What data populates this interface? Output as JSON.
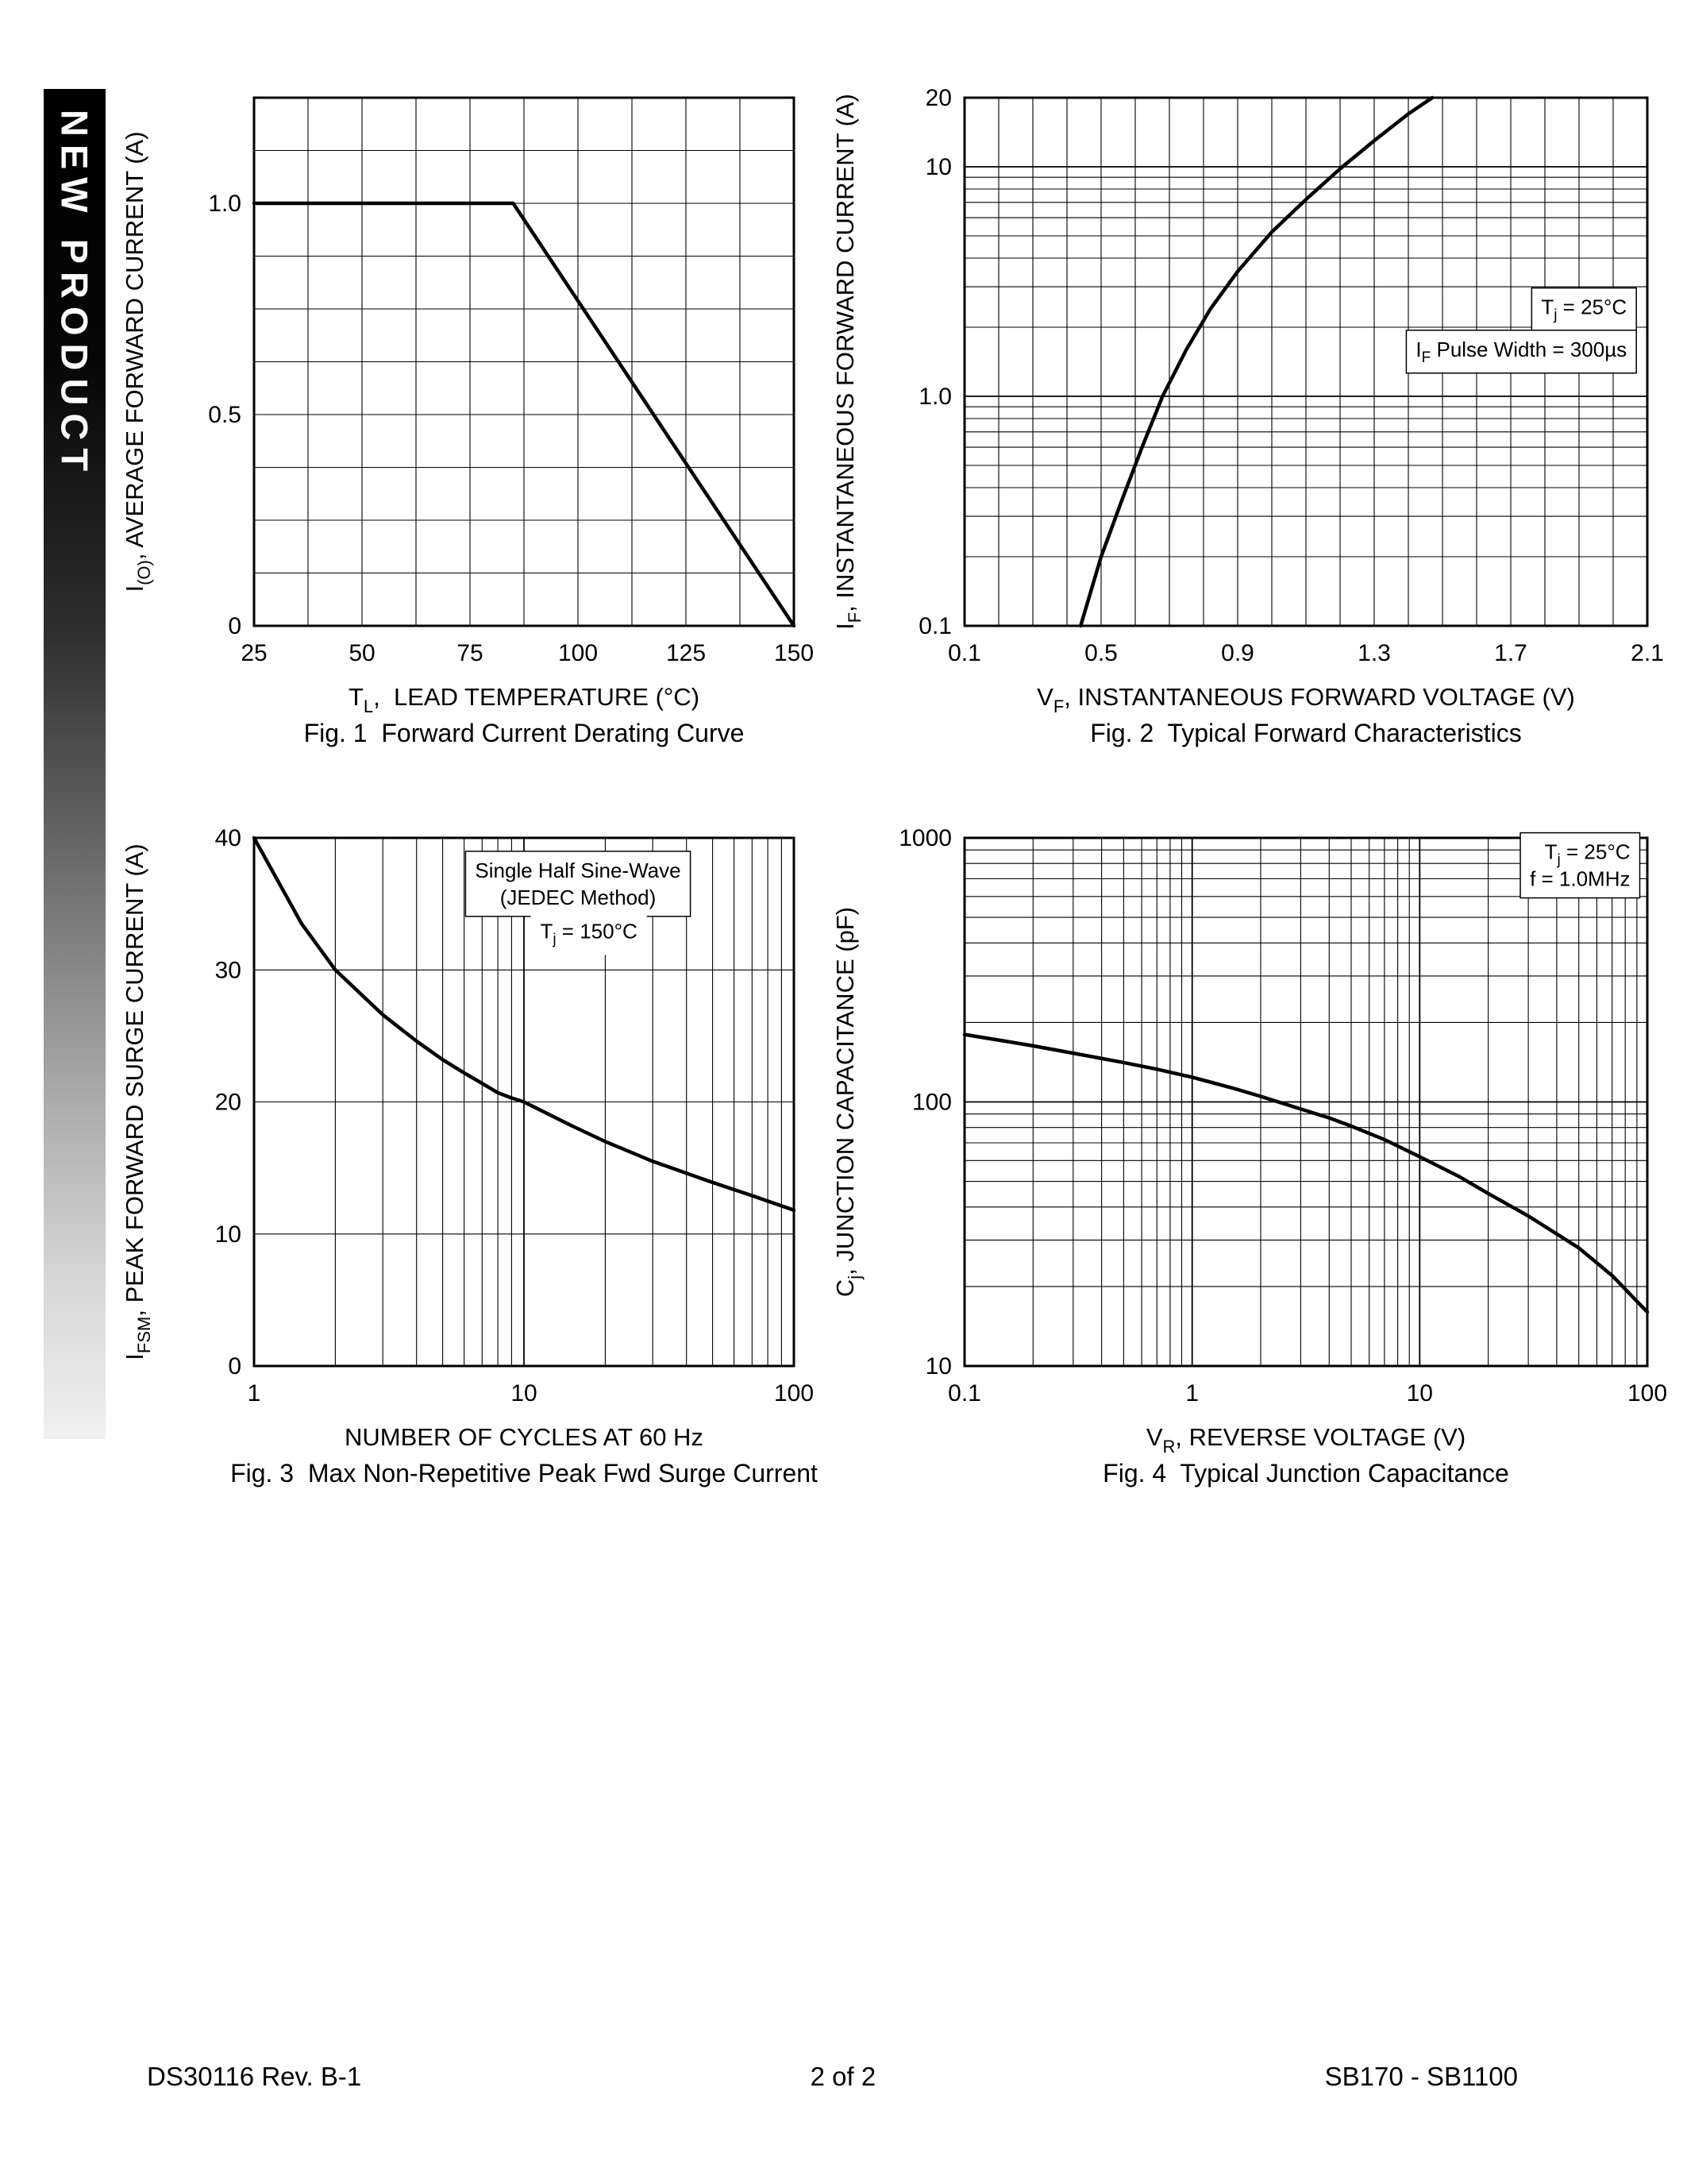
{
  "page": {
    "sidebar_label": "NEW PRODUCT",
    "footer": {
      "left": "DS30116 Rev. B-1",
      "center": "2 of 2",
      "right": "SB170 - SB1100"
    }
  },
  "chart_data": [
    {
      "id": "fig1",
      "type": "line",
      "caption": "Fig. 1  Forward Current Derating Curve",
      "xlabel": [
        {
          "t": "T"
        },
        {
          "t": "L",
          "sub": true
        },
        {
          "t": ",  LEAD TEMPERATURE (°C)"
        }
      ],
      "ylabel": [
        {
          "t": "I"
        },
        {
          "t": "(O)",
          "sub": true
        },
        {
          "t": ", AVERAGE FORWARD CURRENT (A)"
        }
      ],
      "x": {
        "scale": "linear",
        "min": 25,
        "max": 150,
        "grid_step": 12.5,
        "ticks": [
          {
            "v": 25,
            "l": "25"
          },
          {
            "v": 50,
            "l": "50"
          },
          {
            "v": 75,
            "l": "75"
          },
          {
            "v": 100,
            "l": "100"
          },
          {
            "v": 125,
            "l": "125"
          },
          {
            "v": 150,
            "l": "150"
          }
        ]
      },
      "y": {
        "scale": "linear",
        "min": 0,
        "max": 1.25,
        "grid_step": 0.125,
        "ticks": [
          {
            "v": 0,
            "l": "0"
          },
          {
            "v": 0.5,
            "l": "0.5"
          },
          {
            "v": 1.0,
            "l": "1.0"
          }
        ]
      },
      "series": [
        {
          "name": "average-forward-current-derating",
          "points": [
            [
              25,
              1.0
            ],
            [
              85,
              1.0
            ],
            [
              150,
              0
            ]
          ]
        }
      ],
      "annotations": []
    },
    {
      "id": "fig2",
      "type": "line",
      "caption": "Fig. 2  Typical Forward Characteristics",
      "xlabel": [
        {
          "t": "V"
        },
        {
          "t": "F",
          "sub": true
        },
        {
          "t": ", INSTANTANEOUS FORWARD VOLTAGE (V)"
        }
      ],
      "ylabel": [
        {
          "t": "I"
        },
        {
          "t": "F",
          "sub": true
        },
        {
          "t": ", INSTANTANEOUS FORWARD CURRENT (A)"
        }
      ],
      "x": {
        "scale": "linear",
        "min": 0.1,
        "max": 2.1,
        "grid_step": 0.1,
        "ticks": [
          {
            "v": 0.1,
            "l": "0.1"
          },
          {
            "v": 0.5,
            "l": "0.5"
          },
          {
            "v": 0.9,
            "l": "0.9"
          },
          {
            "v": 1.3,
            "l": "1.3"
          },
          {
            "v": 1.7,
            "l": "1.7"
          },
          {
            "v": 2.1,
            "l": "2.1"
          }
        ]
      },
      "y": {
        "scale": "log",
        "min": 0.1,
        "max": 20,
        "ticks": [
          {
            "v": 0.1,
            "l": "0.1"
          },
          {
            "v": 1,
            "l": "1.0"
          },
          {
            "v": 10,
            "l": "10"
          },
          {
            "v": 20,
            "l": "20"
          }
        ]
      },
      "series": [
        {
          "name": "instantaneous-forward-current",
          "points": [
            [
              0.44,
              0.1
            ],
            [
              0.5,
              0.2
            ],
            [
              0.56,
              0.35
            ],
            [
              0.62,
              0.6
            ],
            [
              0.68,
              1.0
            ],
            [
              0.75,
              1.6
            ],
            [
              0.82,
              2.4
            ],
            [
              0.9,
              3.5
            ],
            [
              1.0,
              5.2
            ],
            [
              1.1,
              7.2
            ],
            [
              1.2,
              9.8
            ],
            [
              1.3,
              13
            ],
            [
              1.4,
              17
            ],
            [
              1.47,
              20
            ]
          ]
        }
      ],
      "annotations": [
        {
          "fx": 0.97,
          "fy": 0.41,
          "align": "right",
          "box": true,
          "lines": [
            [
              {
                "t": "T"
              },
              {
                "t": "j",
                "sub": true
              },
              {
                "t": " = 25°C"
              }
            ]
          ]
        },
        {
          "fx": 0.97,
          "fy": 0.49,
          "align": "right",
          "box": true,
          "lines": [
            [
              {
                "t": "I"
              },
              {
                "t": "F",
                "sub": true
              },
              {
                "t": " Pulse Width = 300µs"
              }
            ]
          ]
        }
      ]
    },
    {
      "id": "fig3",
      "type": "line",
      "caption": "Fig. 3  Max Non-Repetitive Peak Fwd Surge Current",
      "xlabel": [
        {
          "t": "NUMBER OF CYCLES AT 60 Hz"
        }
      ],
      "ylabel": [
        {
          "t": "I"
        },
        {
          "t": "FSM",
          "sub": true
        },
        {
          "t": ", PEAK FORWARD SURGE CURRENT (A)"
        }
      ],
      "x": {
        "scale": "log",
        "min": 1,
        "max": 100,
        "ticks": [
          {
            "v": 1,
            "l": "1"
          },
          {
            "v": 10,
            "l": "10"
          },
          {
            "v": 100,
            "l": "100"
          }
        ]
      },
      "y": {
        "scale": "linear",
        "min": 0,
        "max": 40,
        "grid_step": 10,
        "ticks": [
          {
            "v": 0,
            "l": "0"
          },
          {
            "v": 10,
            "l": "10"
          },
          {
            "v": 20,
            "l": "20"
          },
          {
            "v": 30,
            "l": "30"
          },
          {
            "v": 40,
            "l": "40"
          }
        ]
      },
      "series": [
        {
          "name": "peak-forward-surge-current",
          "points": [
            [
              1,
              40
            ],
            [
              1.5,
              33.5
            ],
            [
              2,
              30
            ],
            [
              3,
              26.6
            ],
            [
              4,
              24.6
            ],
            [
              5,
              23.2
            ],
            [
              6,
              22.2
            ],
            [
              7,
              21.4
            ],
            [
              8,
              20.7
            ],
            [
              9,
              20.3
            ],
            [
              10,
              20
            ],
            [
              15,
              18.2
            ],
            [
              20,
              17
            ],
            [
              30,
              15.5
            ],
            [
              40,
              14.6
            ],
            [
              50,
              13.9
            ],
            [
              70,
              12.9
            ],
            [
              100,
              11.8
            ]
          ]
        }
      ],
      "annotations": [
        {
          "fx": 0.6,
          "fy": 0.075,
          "align": "center",
          "box": true,
          "lines": [
            [
              {
                "t": "Single Half Sine-Wave"
              }
            ],
            [
              {
                "t": "(JEDEC Method)"
              }
            ]
          ]
        },
        {
          "fx": 0.62,
          "fy": 0.19,
          "align": "center",
          "bg": true,
          "lines": [
            [
              {
                "t": "T"
              },
              {
                "t": "j",
                "sub": true
              },
              {
                "t": " = 150°C"
              }
            ]
          ]
        }
      ]
    },
    {
      "id": "fig4",
      "type": "line",
      "caption": "Fig. 4  Typical Junction Capacitance",
      "xlabel": [
        {
          "t": "V"
        },
        {
          "t": "R",
          "sub": true
        },
        {
          "t": ", REVERSE VOLTAGE (V)"
        }
      ],
      "ylabel": [
        {
          "t": "C"
        },
        {
          "t": "j",
          "sub": true
        },
        {
          "t": ", JUNCTION CAPACITANCE (pF)"
        }
      ],
      "x": {
        "scale": "log",
        "min": 0.1,
        "max": 100,
        "ticks": [
          {
            "v": 0.1,
            "l": "0.1"
          },
          {
            "v": 1,
            "l": "1"
          },
          {
            "v": 10,
            "l": "10"
          },
          {
            "v": 100,
            "l": "100"
          }
        ]
      },
      "y": {
        "scale": "log",
        "min": 10,
        "max": 1000,
        "ticks": [
          {
            "v": 10,
            "l": "10"
          },
          {
            "v": 100,
            "l": "100"
          },
          {
            "v": 1000,
            "l": "1000"
          }
        ]
      },
      "series": [
        {
          "name": "junction-capacitance",
          "points": [
            [
              0.1,
              180
            ],
            [
              0.15,
              170
            ],
            [
              0.2,
              163
            ],
            [
              0.3,
              153
            ],
            [
              0.5,
              141
            ],
            [
              0.7,
              133
            ],
            [
              1,
              124
            ],
            [
              1.5,
              113
            ],
            [
              2,
              105
            ],
            [
              3,
              94
            ],
            [
              4,
              87
            ],
            [
              5,
              81
            ],
            [
              7,
              72
            ],
            [
              10,
              62
            ],
            [
              15,
              52
            ],
            [
              20,
              45
            ],
            [
              30,
              37
            ],
            [
              50,
              28
            ],
            [
              70,
              22
            ],
            [
              100,
              16
            ]
          ]
        }
      ],
      "annotations": [
        {
          "fx": 0.975,
          "fy": 0.04,
          "align": "right",
          "box": true,
          "lines": [
            [
              {
                "t": "T"
              },
              {
                "t": "j",
                "sub": true
              },
              {
                "t": " = 25°C"
              }
            ],
            [
              {
                "t": "f = 1.0MHz"
              }
            ]
          ]
        }
      ]
    }
  ]
}
